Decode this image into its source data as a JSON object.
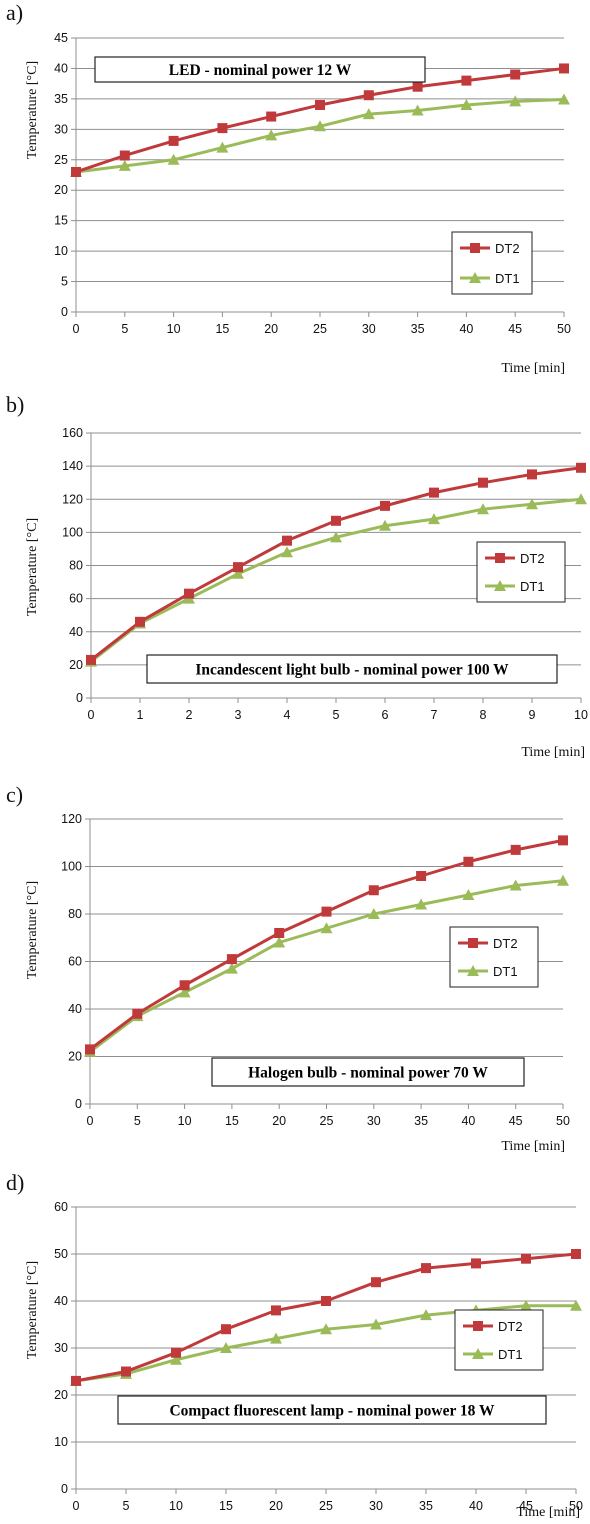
{
  "colors": {
    "dt2": "#c0393b",
    "dt1": "#9bbb59",
    "grid": "#8f8f8f",
    "axis": "#8f8f8f"
  },
  "chart_data": [
    {
      "type": "line",
      "panel_label": "a)",
      "title": "LED - nominal power 12 W",
      "xlabel": "Time [min]",
      "ylabel": "Temperature [°C]",
      "x": [
        0,
        5,
        10,
        15,
        20,
        25,
        30,
        35,
        40,
        45,
        50
      ],
      "x_ticks": [
        "0",
        "5",
        "10",
        "15",
        "20",
        "25",
        "30",
        "35",
        "40",
        "45",
        "50"
      ],
      "y_ticks": [
        "0",
        "5",
        "10",
        "15",
        "20",
        "25",
        "30",
        "35",
        "40",
        "45"
      ],
      "xlim": [
        0,
        50
      ],
      "ylim": [
        0,
        45
      ],
      "grid": true,
      "legend_position": "bottom-right",
      "title_position": "top-left",
      "series": [
        {
          "name": "DT2",
          "marker": "square",
          "values": [
            23,
            25.7,
            28.1,
            30.2,
            32.1,
            34,
            35.6,
            37,
            38,
            39,
            40
          ]
        },
        {
          "name": "DT1",
          "marker": "triangle",
          "values": [
            23,
            24,
            25,
            27,
            29,
            30.5,
            32.5,
            33.1,
            34,
            34.6,
            34.9
          ]
        }
      ]
    },
    {
      "type": "line",
      "panel_label": "b)",
      "title": "Incandescent light bulb - nominal power 100 W",
      "xlabel": "Time [min]",
      "ylabel": "Temperature [°C]",
      "x": [
        0,
        1,
        2,
        3,
        4,
        5,
        6,
        7,
        8,
        9,
        10
      ],
      "x_ticks": [
        "0",
        "1",
        "2",
        "3",
        "4",
        "5",
        "6",
        "7",
        "8",
        "9",
        "10"
      ],
      "y_ticks": [
        "0",
        "20",
        "40",
        "60",
        "80",
        "100",
        "120",
        "140",
        "160"
      ],
      "xlim": [
        0,
        10
      ],
      "ylim": [
        0,
        160
      ],
      "grid": true,
      "legend_position": "right",
      "title_position": "bottom-center",
      "series": [
        {
          "name": "DT2",
          "marker": "square",
          "values": [
            23,
            46,
            63,
            79,
            95,
            107,
            116,
            124,
            130,
            135,
            139
          ]
        },
        {
          "name": "DT1",
          "marker": "triangle",
          "values": [
            22,
            45,
            60,
            75,
            88,
            97,
            104,
            108,
            114,
            117,
            120
          ]
        }
      ]
    },
    {
      "type": "line",
      "panel_label": "c)",
      "title": "Halogen bulb - nominal power 70 W",
      "xlabel": "Time [min]",
      "ylabel": "Temperature [°C]",
      "x": [
        0,
        5,
        10,
        15,
        20,
        25,
        30,
        35,
        40,
        45,
        50
      ],
      "x_ticks": [
        "0",
        "5",
        "10",
        "15",
        "20",
        "25",
        "30",
        "35",
        "40",
        "45",
        "50"
      ],
      "y_ticks": [
        "0",
        "20",
        "40",
        "60",
        "80",
        "100",
        "120"
      ],
      "xlim": [
        0,
        50
      ],
      "ylim": [
        0,
        120
      ],
      "grid": true,
      "legend_position": "right",
      "title_position": "bottom-right",
      "series": [
        {
          "name": "DT2",
          "marker": "square",
          "values": [
            23,
            38,
            50,
            61,
            72,
            81,
            90,
            96,
            102,
            107,
            111
          ]
        },
        {
          "name": "DT1",
          "marker": "triangle",
          "values": [
            22,
            37,
            47,
            57,
            68,
            74,
            80,
            84,
            88,
            92,
            94
          ]
        }
      ]
    },
    {
      "type": "line",
      "panel_label": "d)",
      "title": "Compact fluorescent lamp - nominal power 18 W",
      "xlabel": "Time [min]",
      "ylabel": "Temperature [°C]",
      "x": [
        0,
        5,
        10,
        15,
        20,
        25,
        30,
        35,
        40,
        45,
        50
      ],
      "x_ticks": [
        "0",
        "5",
        "10",
        "15",
        "20",
        "25",
        "30",
        "35",
        "40",
        "45",
        "50"
      ],
      "y_ticks": [
        "0",
        "10",
        "20",
        "30",
        "40",
        "50",
        "60"
      ],
      "xlim": [
        0,
        50
      ],
      "ylim": [
        0,
        60
      ],
      "grid": true,
      "legend_position": "right",
      "title_position": "bottom-center",
      "series": [
        {
          "name": "DT2",
          "marker": "square",
          "values": [
            23,
            25,
            29,
            34,
            38,
            40,
            44,
            47,
            48,
            49,
            50
          ]
        },
        {
          "name": "DT1",
          "marker": "triangle",
          "values": [
            23,
            24.5,
            27.5,
            30,
            32,
            34,
            35,
            37,
            38,
            39,
            39
          ]
        }
      ]
    }
  ]
}
